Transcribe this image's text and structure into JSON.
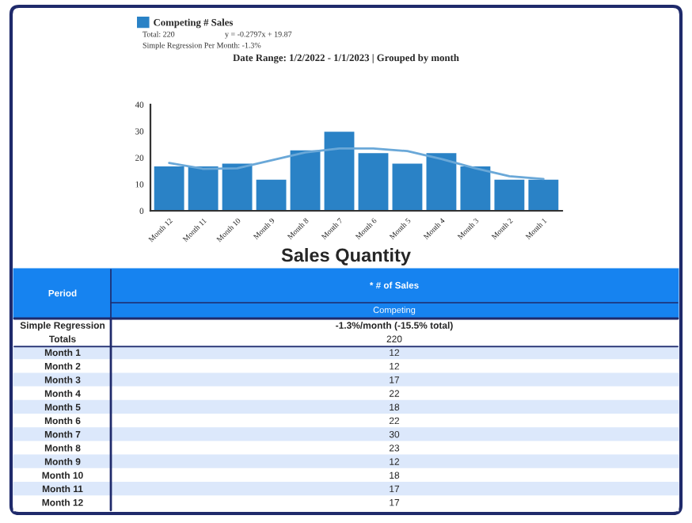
{
  "chart_data": {
    "type": "bar",
    "title": "Date Range: 1/2/2022 - 1/1/2023 | Grouped by month",
    "categories": [
      "Month 12",
      "Month 11",
      "Month 10",
      "Month 9",
      "Month 8",
      "Month 7",
      "Month 6",
      "Month 5",
      "Month 4",
      "Month 3",
      "Month 2",
      "Month 1"
    ],
    "series": [
      {
        "name": "Competing # Sales",
        "color": "#2a82c6",
        "values": [
          17,
          17,
          18,
          12,
          23,
          30,
          22,
          18,
          22,
          17,
          12,
          12
        ]
      },
      {
        "type": "line",
        "color": "#6aa8d8",
        "values": [
          18,
          15.8,
          16,
          19,
          22,
          23.5,
          23.5,
          22.5,
          19.5,
          16,
          13,
          12
        ]
      }
    ],
    "ylim": [
      0,
      40
    ],
    "yticks": [
      0,
      10,
      20,
      30,
      40
    ],
    "grid": false,
    "legend": "top left",
    "annotations": [
      "Total: 220",
      "y = -0.2797x + 19.87",
      "Simple Regression Per Month: -1.3%",
      "Sales Quantity",
      "Period",
      "* # of Sales",
      "Competing",
      "Simple Regression",
      "-1.3%/month (-15.5% total)",
      "Totals",
      "220",
      "Month 1",
      "12",
      "Month 2",
      "12",
      "Month 3",
      "17",
      "Month 4",
      "22",
      "Month 5",
      "18",
      "Month 6",
      "22",
      "Month 7",
      "30",
      "Month 8",
      "23",
      "Month 9",
      "12",
      "Month 10",
      "18",
      "Month 11",
      "17",
      "Month 12",
      "17"
    ]
  }
}
